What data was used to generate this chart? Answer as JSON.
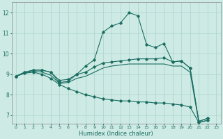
{
  "xlabel": "Humidex (Indice chaleur)",
  "x_ticks": [
    0,
    1,
    2,
    3,
    4,
    5,
    6,
    7,
    8,
    9,
    10,
    11,
    12,
    13,
    14,
    15,
    16,
    17,
    18,
    19,
    20,
    21,
    22,
    23
  ],
  "ylim": [
    6.6,
    12.5
  ],
  "xlim": [
    -0.5,
    23.5
  ],
  "yticks": [
    7,
    8,
    9,
    10,
    11,
    12
  ],
  "bg_color": "#ceeae4",
  "grid_color": "#aad4cc",
  "line_color": "#1a6e62",
  "line1_x": [
    0,
    1,
    2,
    3,
    4,
    5,
    6,
    7,
    8,
    9,
    10,
    11,
    12,
    13,
    14,
    15,
    16,
    17,
    18,
    19,
    20,
    21,
    22
  ],
  "line1_y": [
    8.9,
    9.1,
    9.2,
    9.2,
    9.1,
    8.6,
    8.65,
    9.0,
    9.4,
    9.7,
    11.05,
    11.35,
    11.5,
    12.0,
    11.85,
    10.45,
    10.3,
    10.5,
    9.6,
    9.65,
    9.3,
    6.7,
    6.85
  ],
  "line2_x": [
    0,
    1,
    2,
    3,
    4,
    5,
    6,
    7,
    8,
    9,
    10,
    11,
    12,
    13,
    14,
    15,
    16,
    17,
    18,
    19,
    20,
    21,
    22
  ],
  "line2_y": [
    8.9,
    9.1,
    9.2,
    9.2,
    9.1,
    8.7,
    8.75,
    9.0,
    9.1,
    9.35,
    9.55,
    9.6,
    9.65,
    9.7,
    9.75,
    9.75,
    9.75,
    9.8,
    9.6,
    9.65,
    9.3,
    6.7,
    6.85
  ],
  "line3_x": [
    0,
    1,
    2,
    3,
    4,
    5,
    6,
    7,
    8,
    9,
    10,
    11,
    12,
    13,
    14,
    15,
    16,
    17,
    18,
    19,
    20,
    21,
    22
  ],
  "line3_y": [
    8.9,
    9.05,
    9.15,
    9.1,
    8.95,
    8.55,
    8.6,
    8.8,
    8.9,
    9.1,
    9.3,
    9.4,
    9.45,
    9.5,
    9.5,
    9.5,
    9.5,
    9.5,
    9.4,
    9.4,
    9.1,
    6.65,
    6.75
  ],
  "line4_x": [
    0,
    1,
    2,
    3,
    4,
    5,
    6,
    7,
    8,
    9,
    10,
    11,
    12,
    13,
    14,
    15,
    16,
    17,
    18,
    19,
    20,
    21,
    22
  ],
  "line4_y": [
    8.9,
    9.05,
    9.1,
    9.0,
    8.8,
    8.5,
    8.3,
    8.15,
    8.0,
    7.9,
    7.8,
    7.75,
    7.7,
    7.7,
    7.65,
    7.65,
    7.6,
    7.6,
    7.55,
    7.5,
    7.4,
    6.65,
    6.75
  ]
}
